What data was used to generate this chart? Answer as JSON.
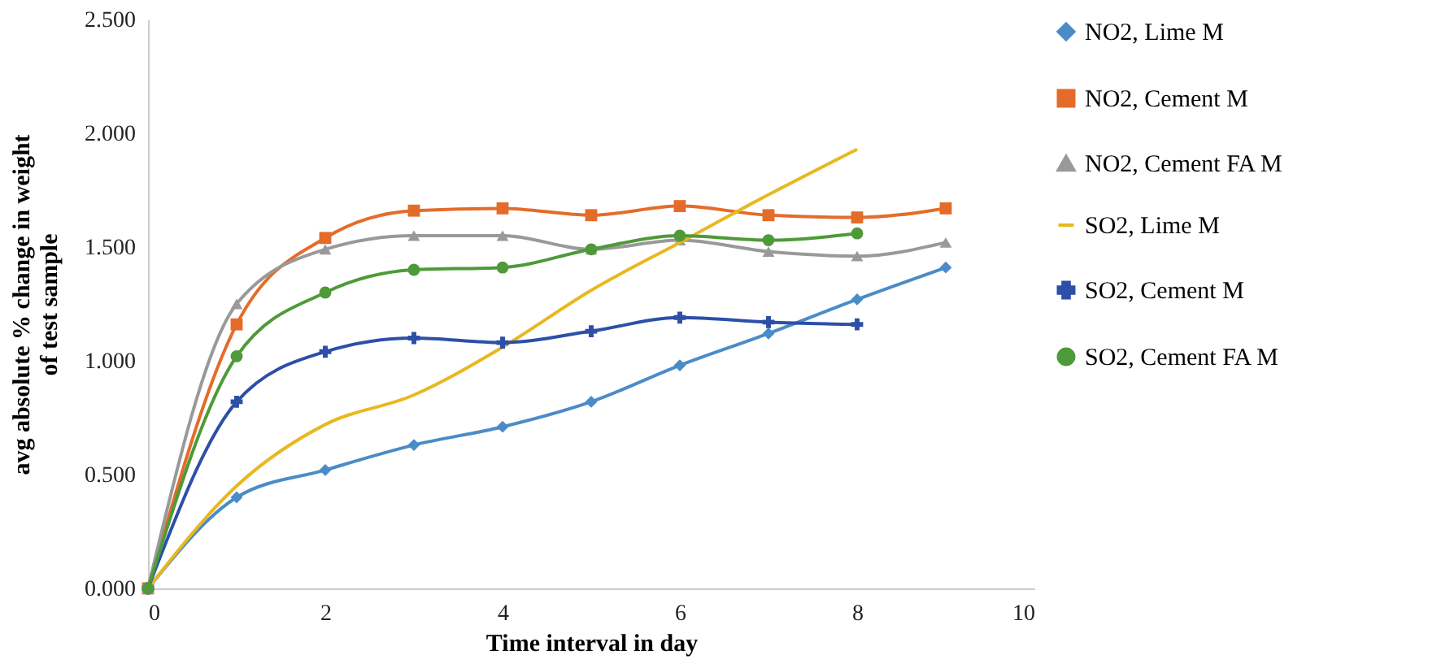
{
  "chart_data": {
    "type": "line",
    "xlabel": "Time interval in day",
    "ylabel": "avg absolute % change in weight\nof test sample",
    "x": [
      0,
      1,
      2,
      3,
      4,
      5,
      6,
      7,
      8,
      9
    ],
    "xlim": [
      0,
      10
    ],
    "xticks": [
      0,
      2,
      4,
      6,
      8,
      10
    ],
    "ylim": [
      0,
      2.5
    ],
    "yticks": [
      {
        "value": 0,
        "label": "0.000"
      },
      {
        "value": 0.5,
        "label": "0.500"
      },
      {
        "value": 1,
        "label": "1.000"
      },
      {
        "value": 1.5,
        "label": "1.500"
      },
      {
        "value": 2,
        "label": "2.000"
      },
      {
        "value": 2.5,
        "label": "2.500"
      }
    ],
    "grid": false,
    "legend": "right",
    "series": [
      {
        "name": "NO2, Lime M",
        "color": "#4a8cc8",
        "marker": "diamond",
        "values": [
          0,
          0.4,
          0.52,
          0.63,
          0.71,
          0.82,
          0.98,
          1.12,
          1.27,
          1.41
        ]
      },
      {
        "name": "NO2, Cement M",
        "color": "#e46c2a",
        "marker": "square",
        "values": [
          0,
          1.16,
          1.54,
          1.66,
          1.67,
          1.64,
          1.68,
          1.64,
          1.63,
          1.67
        ]
      },
      {
        "name": "NO2, Cement FA M",
        "color": "#999999",
        "marker": "triangle",
        "values": [
          0,
          1.25,
          1.49,
          1.55,
          1.55,
          1.49,
          1.53,
          1.48,
          1.46,
          1.52
        ]
      },
      {
        "name": "SO2, Lime M",
        "color": "#e8b820",
        "marker": "none",
        "values": [
          0,
          0.45,
          0.72,
          0.85,
          1.06,
          1.31,
          1.52,
          1.73,
          1.93,
          null
        ]
      },
      {
        "name": "SO2, Cement M",
        "color": "#2d4fa8",
        "marker": "cross",
        "values": [
          0,
          0.82,
          1.04,
          1.1,
          1.08,
          1.13,
          1.19,
          1.17,
          1.16,
          null
        ]
      },
      {
        "name": "SO2, Cement FA M",
        "color": "#4e9a3a",
        "marker": "circle",
        "values": [
          0,
          1.02,
          1.3,
          1.4,
          1.41,
          1.49,
          1.55,
          1.53,
          1.56,
          null
        ]
      }
    ]
  }
}
